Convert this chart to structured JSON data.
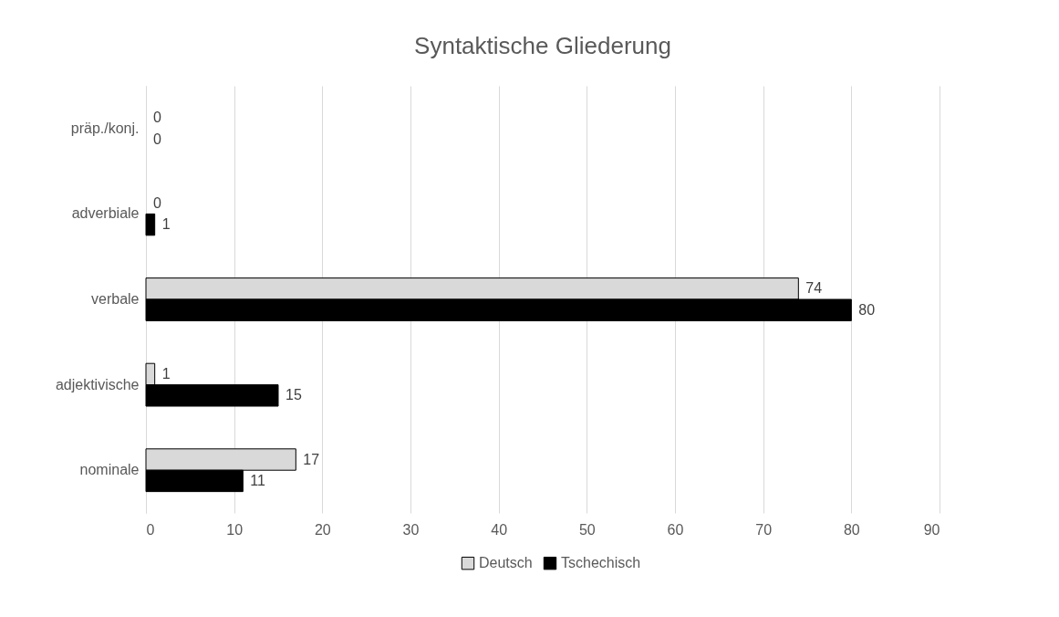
{
  "chart_data": {
    "type": "bar",
    "orientation": "horizontal",
    "title": "Syntaktische Gliederung",
    "categories": [
      "präp./konj.",
      "adverbiale",
      "verbale",
      "adjektivische",
      "nominale"
    ],
    "series": [
      {
        "name": "Deutsch",
        "color": "#d9d9d9",
        "values": [
          0,
          0,
          74,
          1,
          17
        ]
      },
      {
        "name": "Tschechisch",
        "color": "#000000",
        "values": [
          0,
          1,
          80,
          15,
          11
        ]
      }
    ],
    "xlim": [
      0,
      90
    ],
    "xticks": [
      0,
      10,
      20,
      30,
      40,
      50,
      60,
      70,
      80,
      90
    ],
    "grid": "x",
    "legend": "bottom",
    "data_labels": true
  }
}
